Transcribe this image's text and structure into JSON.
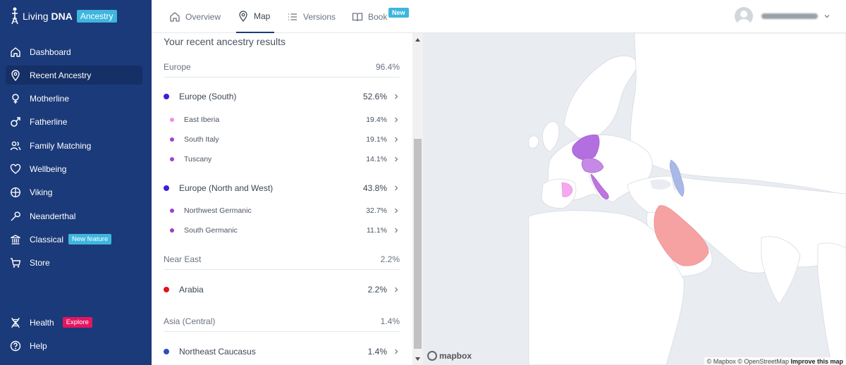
{
  "brand": {
    "name_light": "Living",
    "name_bold": "DNA",
    "badge": "Ancestry"
  },
  "sidebar": {
    "items": [
      {
        "label": "Dashboard",
        "icon": "home-icon"
      },
      {
        "label": "Recent Ancestry",
        "icon": "map-pin-icon",
        "active": true
      },
      {
        "label": "Motherline",
        "icon": "female-symbol-icon"
      },
      {
        "label": "Fatherline",
        "icon": "male-symbol-icon"
      },
      {
        "label": "Family Matching",
        "icon": "people-icon"
      },
      {
        "label": "Wellbeing",
        "icon": "heart-icon"
      },
      {
        "label": "Viking",
        "icon": "viking-shield-icon"
      },
      {
        "label": "Neanderthal",
        "icon": "neanderthal-tool-icon"
      },
      {
        "label": "Classical",
        "icon": "temple-icon",
        "badge": "New feature"
      },
      {
        "label": "Store",
        "icon": "cart-icon"
      }
    ],
    "bottom": [
      {
        "label": "Health",
        "icon": "dna-icon",
        "badge": "Explore"
      },
      {
        "label": "Help",
        "icon": "question-circle-icon"
      }
    ]
  },
  "tabs": [
    {
      "label": "Overview",
      "icon": "home-icon"
    },
    {
      "label": "Map",
      "icon": "map-pin-icon",
      "active": true
    },
    {
      "label": "Versions",
      "icon": "list-icon"
    },
    {
      "label": "Book",
      "icon": "book-icon",
      "badge": "New"
    }
  ],
  "results": {
    "title": "Your recent ancestry results",
    "regions": [
      {
        "name": "Europe",
        "percent": "96.4%",
        "groups": [
          {
            "name": "Europe (South)",
            "percent": "52.6%",
            "color": "#3a1fd6",
            "subs": [
              {
                "name": "East Iberia",
                "percent": "19.4%",
                "color": "#f28ce8"
              },
              {
                "name": "South Italy",
                "percent": "19.1%",
                "color": "#a043d0"
              },
              {
                "name": "Tuscany",
                "percent": "14.1%",
                "color": "#a043d0"
              }
            ]
          },
          {
            "name": "Europe (North and West)",
            "percent": "43.8%",
            "color": "#3a1fd6",
            "subs": [
              {
                "name": "Northwest Germanic",
                "percent": "32.7%",
                "color": "#9b3fc9"
              },
              {
                "name": "South Germanic",
                "percent": "11.1%",
                "color": "#9b3fc9"
              }
            ]
          }
        ]
      },
      {
        "name": "Near East",
        "percent": "2.2%",
        "groups": [
          {
            "name": "Arabia",
            "percent": "2.2%",
            "color": "#e0131f",
            "subs": []
          }
        ]
      },
      {
        "name": "Asia (Central)",
        "percent": "1.4%",
        "groups": [
          {
            "name": "Northeast Caucasus",
            "percent": "1.4%",
            "color": "#2b4fb8",
            "subs": []
          }
        ]
      }
    ]
  },
  "map": {
    "logo": "mapbox",
    "attribution": "© Mapbox © OpenStreetMap",
    "improve_link": "Improve this map",
    "highlight_colors": {
      "germanic": "#b36ee0",
      "tuscany": "#c58ae6",
      "south_italy": "#c074e0",
      "east_iberia": "#f6a8ee",
      "arabia": "#f6a2a2",
      "caucasus": "#a9b9e6"
    }
  }
}
